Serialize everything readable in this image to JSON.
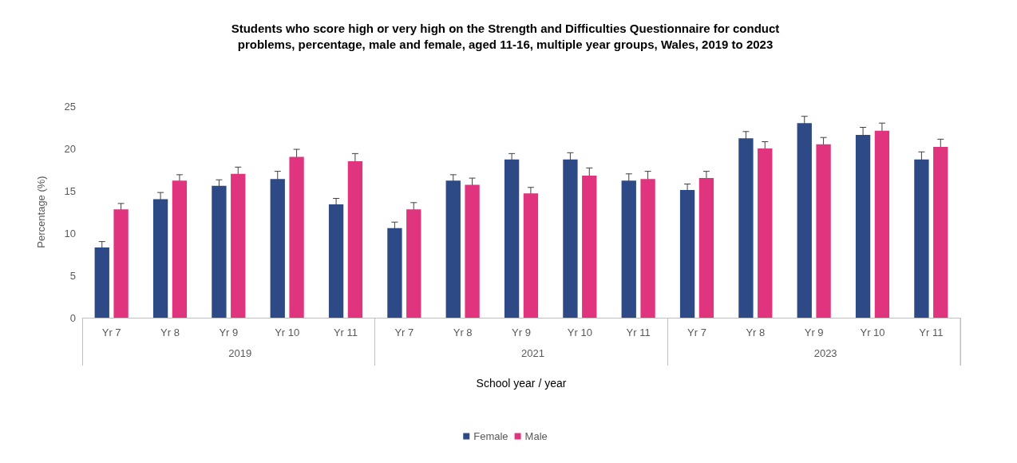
{
  "chart_data": {
    "type": "bar",
    "title": "Students who score high or very high on the Strength and Difficulties Questionnaire for conduct problems, percentage, male and female, aged 11-16, multiple year groups, Wales, 2019 to 2023",
    "xlabel": "School year / year",
    "ylabel": "Percentage (%)",
    "categories": [
      "Yr 7",
      "Yr 8",
      "Yr 9",
      "Yr 10",
      "Yr 11",
      "Yr 7",
      "Yr 8",
      "Yr 9",
      "Yr 10",
      "Yr 11",
      "Yr 7",
      "Yr 8",
      "Yr 9",
      "Yr 10",
      "Yr 11"
    ],
    "annotations": [
      "2019",
      "2021",
      "2023"
    ],
    "series": [
      {
        "name": "Female",
        "color": "#2e4a86",
        "values": [
          8.3,
          14.0,
          15.6,
          16.4,
          13.4,
          10.6,
          16.2,
          18.7,
          18.7,
          16.2,
          15.1,
          21.2,
          23.0,
          21.6,
          18.7
        ],
        "errors": [
          0.7,
          0.8,
          0.7,
          0.9,
          0.7,
          0.7,
          0.7,
          0.7,
          0.8,
          0.8,
          0.7,
          0.8,
          0.8,
          0.9,
          0.9
        ]
      },
      {
        "name": "Male",
        "color": "#e0357e",
        "values": [
          12.8,
          16.2,
          17.0,
          19.0,
          18.5,
          12.8,
          15.7,
          14.7,
          16.8,
          16.4,
          16.5,
          20.0,
          20.5,
          22.1,
          20.2
        ],
        "errors": [
          0.7,
          0.7,
          0.8,
          0.9,
          0.9,
          0.8,
          0.8,
          0.7,
          0.9,
          0.9,
          0.8,
          0.8,
          0.8,
          0.9,
          0.9
        ]
      }
    ],
    "ylim": [
      0,
      25
    ],
    "yticks": [
      0,
      5,
      10,
      15,
      20,
      25
    ],
    "grid": false,
    "legend": "bottom"
  }
}
